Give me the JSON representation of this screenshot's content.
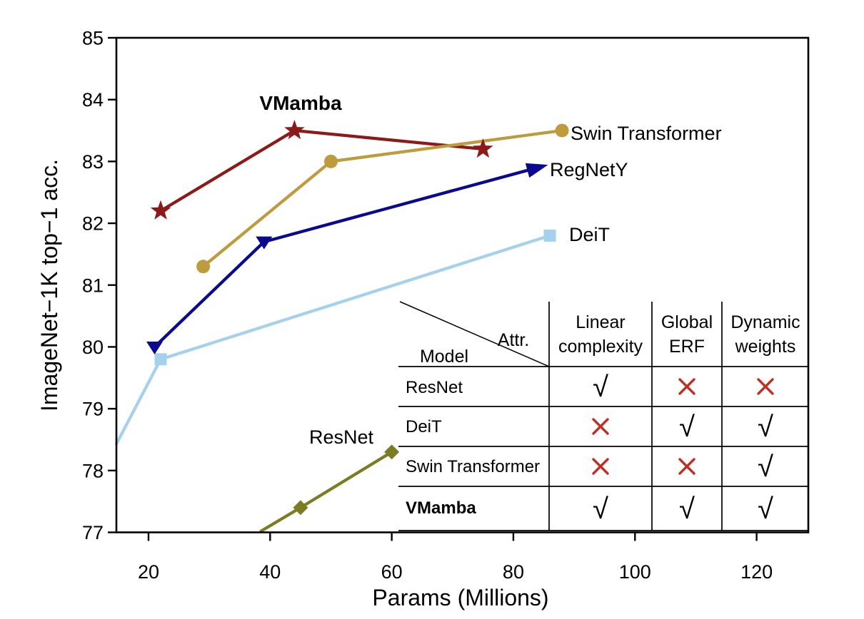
{
  "chart_data": {
    "type": "line",
    "title": "",
    "xlabel": "Params (Millions)",
    "ylabel": "ImageNet−1K top−1 acc.",
    "xlim": [
      14.72,
      128.5
    ],
    "ylim": [
      77,
      85
    ],
    "xticks": [
      20,
      40,
      60,
      80,
      100,
      120
    ],
    "yticks": [
      77,
      78,
      79,
      80,
      81,
      82,
      83,
      84,
      85
    ],
    "grid": false,
    "legend_position": "inline-labels",
    "series": [
      {
        "name": "DeiT",
        "color": "#A5D1EC",
        "marker": "square",
        "points": [
          [
            22,
            79.8
          ],
          [
            86,
            81.8
          ]
        ],
        "line_path": [
          [
            14.72,
            78.43
          ],
          [
            22,
            79.8
          ],
          [
            86,
            81.8
          ]
        ],
        "label": {
          "text": "DeiT",
          "anchor": "start"
        }
      },
      {
        "name": "ResNet",
        "color": "#7C7C23",
        "marker": "diamond",
        "points": [
          [
            45,
            77.4
          ],
          [
            60,
            78.3
          ]
        ],
        "line_path": [
          [
            38.5,
            77.02
          ],
          [
            45,
            77.4
          ],
          [
            60,
            78.3
          ]
        ],
        "label": {
          "text": "ResNet",
          "anchor": "middle"
        }
      },
      {
        "name": "RegNetY",
        "color": "#0A0A8E",
        "marker": "triangle-down",
        "end_marker": "arrow",
        "points": [
          [
            21,
            80.0
          ],
          [
            39,
            81.7
          ],
          [
            84,
            82.9
          ]
        ],
        "line_path": [
          [
            21,
            80.0
          ],
          [
            39,
            81.7
          ],
          [
            84,
            82.9
          ]
        ],
        "label": {
          "text": "RegNetY",
          "anchor": "start"
        }
      },
      {
        "name": "VMamba",
        "color": "#8B1A1A",
        "marker": "star",
        "points": [
          [
            22,
            82.2
          ],
          [
            44,
            83.5
          ],
          [
            75,
            83.2
          ]
        ],
        "line_path": [
          [
            22,
            82.2
          ],
          [
            44,
            83.5
          ],
          [
            75,
            83.2
          ]
        ],
        "label": {
          "text": "VMamba",
          "anchor": "middle",
          "bold": true
        }
      },
      {
        "name": "Swin Transformer",
        "color": "#BE9B3C",
        "marker": "circle",
        "points": [
          [
            29,
            81.3
          ],
          [
            50,
            83.0
          ],
          [
            88,
            83.5
          ]
        ],
        "line_path": [
          [
            29,
            81.3
          ],
          [
            50,
            83.0
          ],
          [
            88,
            83.5
          ]
        ],
        "label": {
          "text": "Swin Transformer",
          "anchor": "start"
        }
      }
    ]
  },
  "table": {
    "attr_label": "Attr.",
    "model_label": "Model",
    "columns": [
      [
        "Linear",
        "complexity"
      ],
      [
        "Global",
        "ERF"
      ],
      [
        "Dynamic",
        "weights"
      ]
    ],
    "rows": [
      {
        "model": "ResNet",
        "bold": false,
        "values": [
          "check",
          "cross",
          "cross"
        ]
      },
      {
        "model": "DeiT",
        "bold": false,
        "values": [
          "cross",
          "check",
          "check"
        ]
      },
      {
        "model": "Swin Transformer",
        "bold": false,
        "values": [
          "cross",
          "cross",
          "check"
        ]
      },
      {
        "model": "VMamba",
        "bold": true,
        "values": [
          "check",
          "check",
          "check"
        ]
      }
    ],
    "check_glyph": "√",
    "check_color": "#5F8F42",
    "cross_color": "#BE3026"
  }
}
